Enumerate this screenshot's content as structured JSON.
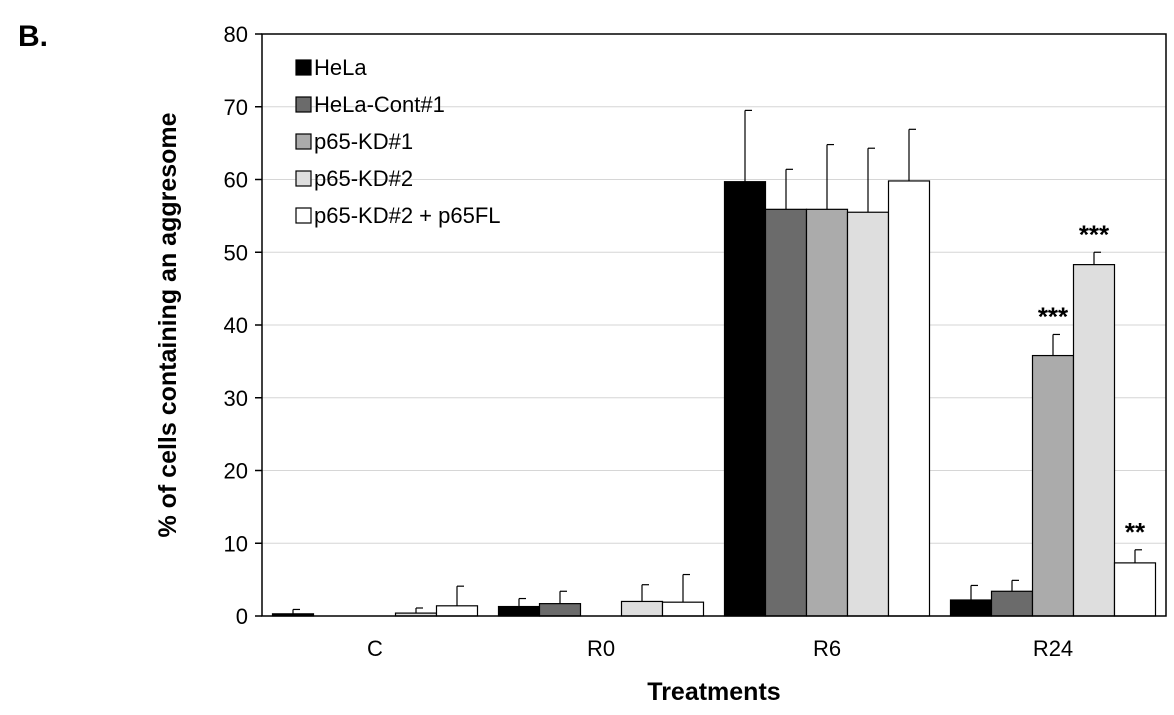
{
  "panel_label": "B.",
  "chart_data": {
    "type": "bar",
    "title": "",
    "xlabel": "Treatments",
    "ylabel": "% of cells  containing an aggresome",
    "ylim": [
      0,
      80
    ],
    "yticks": [
      "0",
      "10",
      "20",
      "30",
      "40",
      "50",
      "60",
      "70",
      "80"
    ],
    "grid": "horizontal",
    "legend_position": "top-left",
    "categories": [
      "C",
      "R0",
      "R6",
      "R24"
    ],
    "series": [
      {
        "name": "HeLa",
        "color": "#000000",
        "values": [
          0.3,
          1.3,
          59.7,
          2.2
        ],
        "errors": [
          0.6,
          1.1,
          9.8,
          2.0
        ],
        "significance": [
          "",
          "",
          "",
          ""
        ]
      },
      {
        "name": "HeLa-Cont#1",
        "color": "#6b6b6b",
        "values": [
          0,
          1.7,
          55.9,
          3.4
        ],
        "errors": [
          0,
          1.7,
          5.5,
          1.5
        ],
        "significance": [
          "",
          "",
          "",
          ""
        ]
      },
      {
        "name": "p65-KD#1",
        "color": "#ababab",
        "values": [
          0,
          0,
          55.9,
          35.8
        ],
        "errors": [
          0,
          0,
          8.9,
          2.9
        ],
        "significance": [
          "",
          "",
          "",
          "***"
        ]
      },
      {
        "name": "p65-KD#2",
        "color": "#dedede",
        "values": [
          0.4,
          2.0,
          55.5,
          48.3
        ],
        "errors": [
          0.7,
          2.3,
          8.8,
          1.7
        ],
        "significance": [
          "",
          "",
          "",
          "***"
        ]
      },
      {
        "name": "p65-KD#2 + p65FL",
        "color": "#ffffff",
        "values": [
          1.4,
          1.9,
          59.8,
          7.3
        ],
        "errors": [
          2.7,
          3.8,
          7.1,
          1.8
        ],
        "significance": [
          "",
          "",
          "",
          "**"
        ]
      }
    ]
  }
}
